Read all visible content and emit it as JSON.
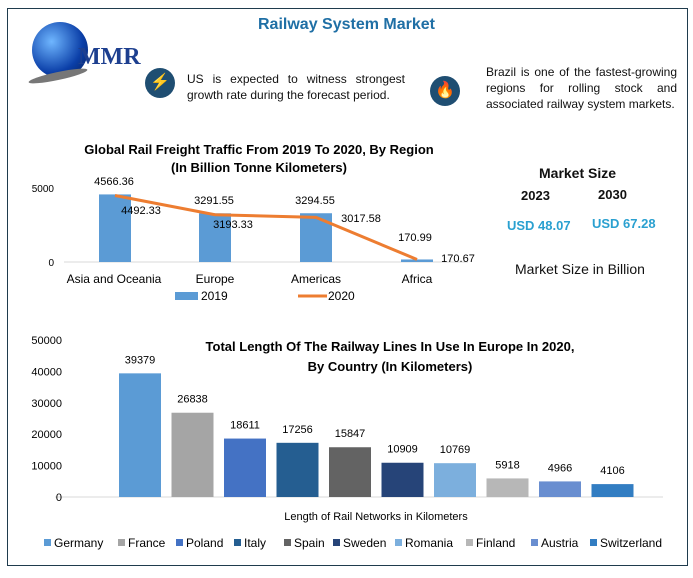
{
  "header": {
    "title": "Railway System Market",
    "logo_text": "MMR"
  },
  "notes": [
    {
      "icon": "lightning-icon",
      "text": "US is expected to witness strongest growth rate during the forecast period."
    },
    {
      "icon": "flame-icon",
      "text": "Brazil is one of the fastest-growing regions for rolling stock and associated railway system markets."
    }
  ],
  "market_size": {
    "title": "Market Size",
    "years": [
      "2023",
      "2030"
    ],
    "values": [
      "USD 48.07",
      "USD 67.28"
    ],
    "caption": "Market Size in Billion"
  },
  "chart_data": [
    {
      "type": "bar+line",
      "title": "Global Rail Freight Traffic From 2019 To 2020, By Region",
      "subtitle": "(In Billion Tonne Kilometers)",
      "categories": [
        "Asia and Oceania",
        "Europe",
        "Americas",
        "Africa"
      ],
      "series": [
        {
          "name": "2019",
          "type": "bar",
          "values": [
            4566.36,
            3291.55,
            3294.55,
            170.99
          ],
          "labels": [
            "4566.36",
            "3291.55",
            "3294.55",
            "170.99"
          ],
          "color": "#5b9bd5"
        },
        {
          "name": "2020",
          "type": "line",
          "values": [
            4492.33,
            3193.33,
            3017.58,
            170.67
          ],
          "labels": [
            "4492.33",
            "3193.33",
            "3017.58",
            "170.67"
          ],
          "color": "#ed7d31"
        }
      ],
      "yticks": [
        "0",
        "5000"
      ],
      "ylim": [
        0,
        5000
      ],
      "grid": false,
      "legend": "bottom"
    },
    {
      "type": "bar",
      "title": "Total Length Of The Railway Lines In Use In Europe In 2020,",
      "subtitle": "By Country (In Kilometers)",
      "xlabel": "Length of Rail Networks in Kilometers",
      "categories": [
        "Germany",
        "France",
        "Poland",
        "Italy",
        "Spain",
        "Sweden",
        "Romania",
        "Finland",
        "Austria",
        "Switzerland"
      ],
      "values": [
        39379,
        26838,
        18611,
        17256,
        15847,
        10909,
        10769,
        5918,
        4966,
        4106
      ],
      "labels": [
        "39379",
        "26838",
        "18611",
        "17256",
        "15847",
        "10909",
        "10769",
        "5918",
        "4966",
        "4106"
      ],
      "colors": [
        "#5b9bd5",
        "#a5a5a5",
        "#4472c4",
        "#255e91",
        "#636363",
        "#264478",
        "#7cafdd",
        "#b7b7b7",
        "#698ed0",
        "#327dc2"
      ],
      "yticks": [
        "0",
        "10000",
        "20000",
        "30000",
        "40000",
        "50000"
      ],
      "ylim": [
        0,
        50000
      ],
      "grid": false,
      "legend": "bottom"
    }
  ]
}
